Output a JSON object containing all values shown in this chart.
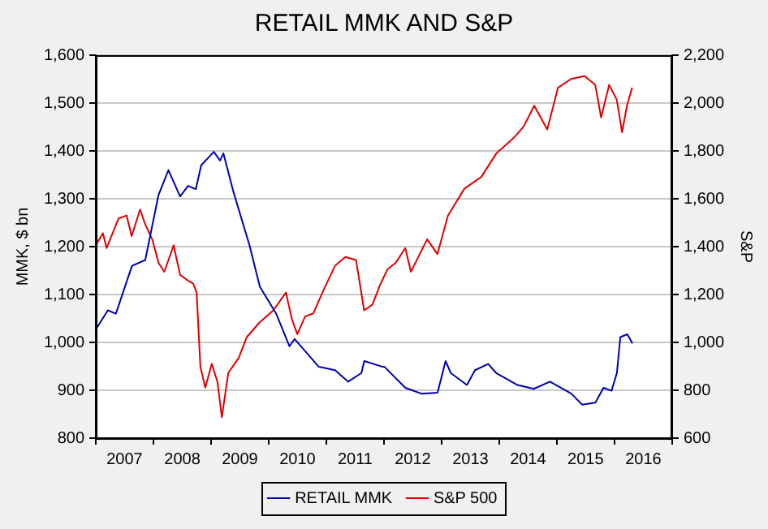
{
  "chart_data": {
    "type": "line",
    "title": "RETAIL MMK AND S&P",
    "ylabel": "MMK, $ bn",
    "y2label": "S&P",
    "xlim": [
      "2007-01-01",
      "2017-01-01"
    ],
    "xticks": [
      {
        "value": "2007-01-01",
        "label": null
      },
      {
        "value": "2007-07-02",
        "label": "2007"
      },
      {
        "value": "2008-01-01",
        "label": null
      },
      {
        "value": "2008-07-02",
        "label": "2008"
      },
      {
        "value": "2009-01-01",
        "label": null
      },
      {
        "value": "2009-07-02",
        "label": "2009"
      },
      {
        "value": "2010-01-01",
        "label": null
      },
      {
        "value": "2010-07-02",
        "label": "2010"
      },
      {
        "value": "2011-01-01",
        "label": null
      },
      {
        "value": "2011-07-02",
        "label": "2011"
      },
      {
        "value": "2012-01-01",
        "label": null
      },
      {
        "value": "2012-07-02",
        "label": "2012"
      },
      {
        "value": "2013-01-01",
        "label": null
      },
      {
        "value": "2013-07-02",
        "label": "2013"
      },
      {
        "value": "2014-01-01",
        "label": null
      },
      {
        "value": "2014-07-02",
        "label": "2014"
      },
      {
        "value": "2015-01-01",
        "label": null
      },
      {
        "value": "2015-07-02",
        "label": "2015"
      },
      {
        "value": "2016-01-01",
        "label": null
      },
      {
        "value": "2016-07-02",
        "label": "2016"
      },
      {
        "value": "2017-01-01",
        "label": null
      }
    ],
    "ylim": [
      800,
      1600
    ],
    "yticks": [
      {
        "value": 800,
        "label": "800"
      },
      {
        "value": 900,
        "label": "900"
      },
      {
        "value": 1000,
        "label": "1,000"
      },
      {
        "value": 1100,
        "label": "1,100"
      },
      {
        "value": 1200,
        "label": "1,200"
      },
      {
        "value": 1300,
        "label": "1,300"
      },
      {
        "value": 1400,
        "label": "1,400"
      },
      {
        "value": 1500,
        "label": "1,500"
      },
      {
        "value": 1600,
        "label": "1,600"
      }
    ],
    "y2lim": [
      600,
      2200
    ],
    "y2ticks": [
      {
        "value": 600,
        "label": "600"
      },
      {
        "value": 800,
        "label": "800"
      },
      {
        "value": 1000,
        "label": "1,000"
      },
      {
        "value": 1200,
        "label": "1,200"
      },
      {
        "value": 1400,
        "label": "1,400"
      },
      {
        "value": 1600,
        "label": "1,600"
      },
      {
        "value": 1800,
        "label": "1,800"
      },
      {
        "value": 2000,
        "label": "2,000"
      },
      {
        "value": 2200,
        "label": "2,200"
      }
    ],
    "grid": "y",
    "legend": "bottom",
    "marker": "none",
    "line_style": "solid",
    "series": [
      {
        "name": "RETAIL MMK",
        "color": "#0000b0",
        "x": [
          "2007-01-01",
          "2007-03-18",
          "2007-05-08",
          "2007-08-18",
          "2007-11-10",
          "2008-02-02",
          "2008-04-05",
          "2008-06-18",
          "2008-08-08",
          "2008-09-26",
          "2008-10-30",
          "2009-01-18",
          "2009-02-27",
          "2009-03-20",
          "2009-05-22",
          "2009-09-01",
          "2009-11-06",
          "2010-02-17",
          "2010-05-12",
          "2010-06-14",
          "2010-11-14",
          "2011-02-25",
          "2011-05-19",
          "2011-08-11",
          "2011-08-29",
          "2011-12-24",
          "2012-01-04",
          "2012-05-16",
          "2012-08-25",
          "2012-12-06",
          "2013-01-26",
          "2013-02-28",
          "2013-06-10",
          "2013-07-31",
          "2013-10-23",
          "2013-12-13",
          "2014-04-27",
          "2014-08-08",
          "2014-11-18",
          "2015-04-02",
          "2015-06-10",
          "2015-09-02",
          "2015-10-23",
          "2015-12-13",
          "2016-01-16",
          "2016-02-07",
          "2016-03-22",
          "2016-04-24"
        ],
        "values": [
          1027,
          1067,
          1060,
          1160,
          1172,
          1308,
          1360,
          1305,
          1327,
          1320,
          1370,
          1398,
          1380,
          1395,
          1315,
          1203,
          1116,
          1060,
          992,
          1007,
          949,
          942,
          918,
          936,
          961,
          949,
          949,
          905,
          893,
          895,
          961,
          936,
          911,
          942,
          955,
          936,
          911,
          903,
          918,
          893,
          870,
          874,
          905,
          899,
          936,
          1011,
          1017,
          998
        ]
      },
      {
        "name": "S&P 500",
        "color": "#e00000",
        "axis": "y2",
        "x": [
          "2007-01-01",
          "2007-02-15",
          "2007-03-10",
          "2007-05-25",
          "2007-07-15",
          "2007-08-16",
          "2007-10-08",
          "2007-11-10",
          "2007-12-24",
          "2008-02-02",
          "2008-03-10",
          "2008-05-08",
          "2008-06-18",
          "2008-08-08",
          "2008-09-10",
          "2008-10-01",
          "2008-10-25",
          "2008-11-25",
          "2009-01-05",
          "2009-02-10",
          "2009-03-10",
          "2009-04-20",
          "2009-06-25",
          "2009-08-15",
          "2009-11-05",
          "2010-01-30",
          "2010-04-20",
          "2010-05-28",
          "2010-07-01",
          "2010-08-20",
          "2010-10-10",
          "2010-12-15",
          "2011-02-25",
          "2011-05-01",
          "2011-07-08",
          "2011-08-28",
          "2011-10-20",
          "2011-12-10",
          "2012-01-25",
          "2012-03-15",
          "2012-05-15",
          "2012-06-20",
          "2012-10-01",
          "2012-12-05",
          "2013-02-10",
          "2013-05-25",
          "2013-09-10",
          "2013-12-15",
          "2014-04-01",
          "2014-06-05",
          "2014-08-10",
          "2014-11-01",
          "2015-01-08",
          "2015-04-01",
          "2015-06-25",
          "2015-09-01",
          "2015-10-08",
          "2015-11-28",
          "2016-01-15",
          "2016-02-18",
          "2016-03-20",
          "2016-04-22"
        ],
        "values": [
          1406,
          1456,
          1394,
          1518,
          1530,
          1444,
          1555,
          1493,
          1431,
          1332,
          1295,
          1406,
          1282,
          1258,
          1245,
          1208,
          898,
          811,
          910,
          836,
          687,
          873,
          935,
          1022,
          1084,
          1134,
          1208,
          1096,
          1034,
          1109,
          1121,
          1220,
          1320,
          1357,
          1344,
          1134,
          1158,
          1245,
          1307,
          1332,
          1394,
          1295,
          1431,
          1369,
          1530,
          1642,
          1692,
          1791,
          1853,
          1902,
          1989,
          1890,
          2064,
          2101,
          2113,
          2076,
          1940,
          2076,
          2014,
          1878,
          1989,
          2064
        ]
      }
    ]
  }
}
